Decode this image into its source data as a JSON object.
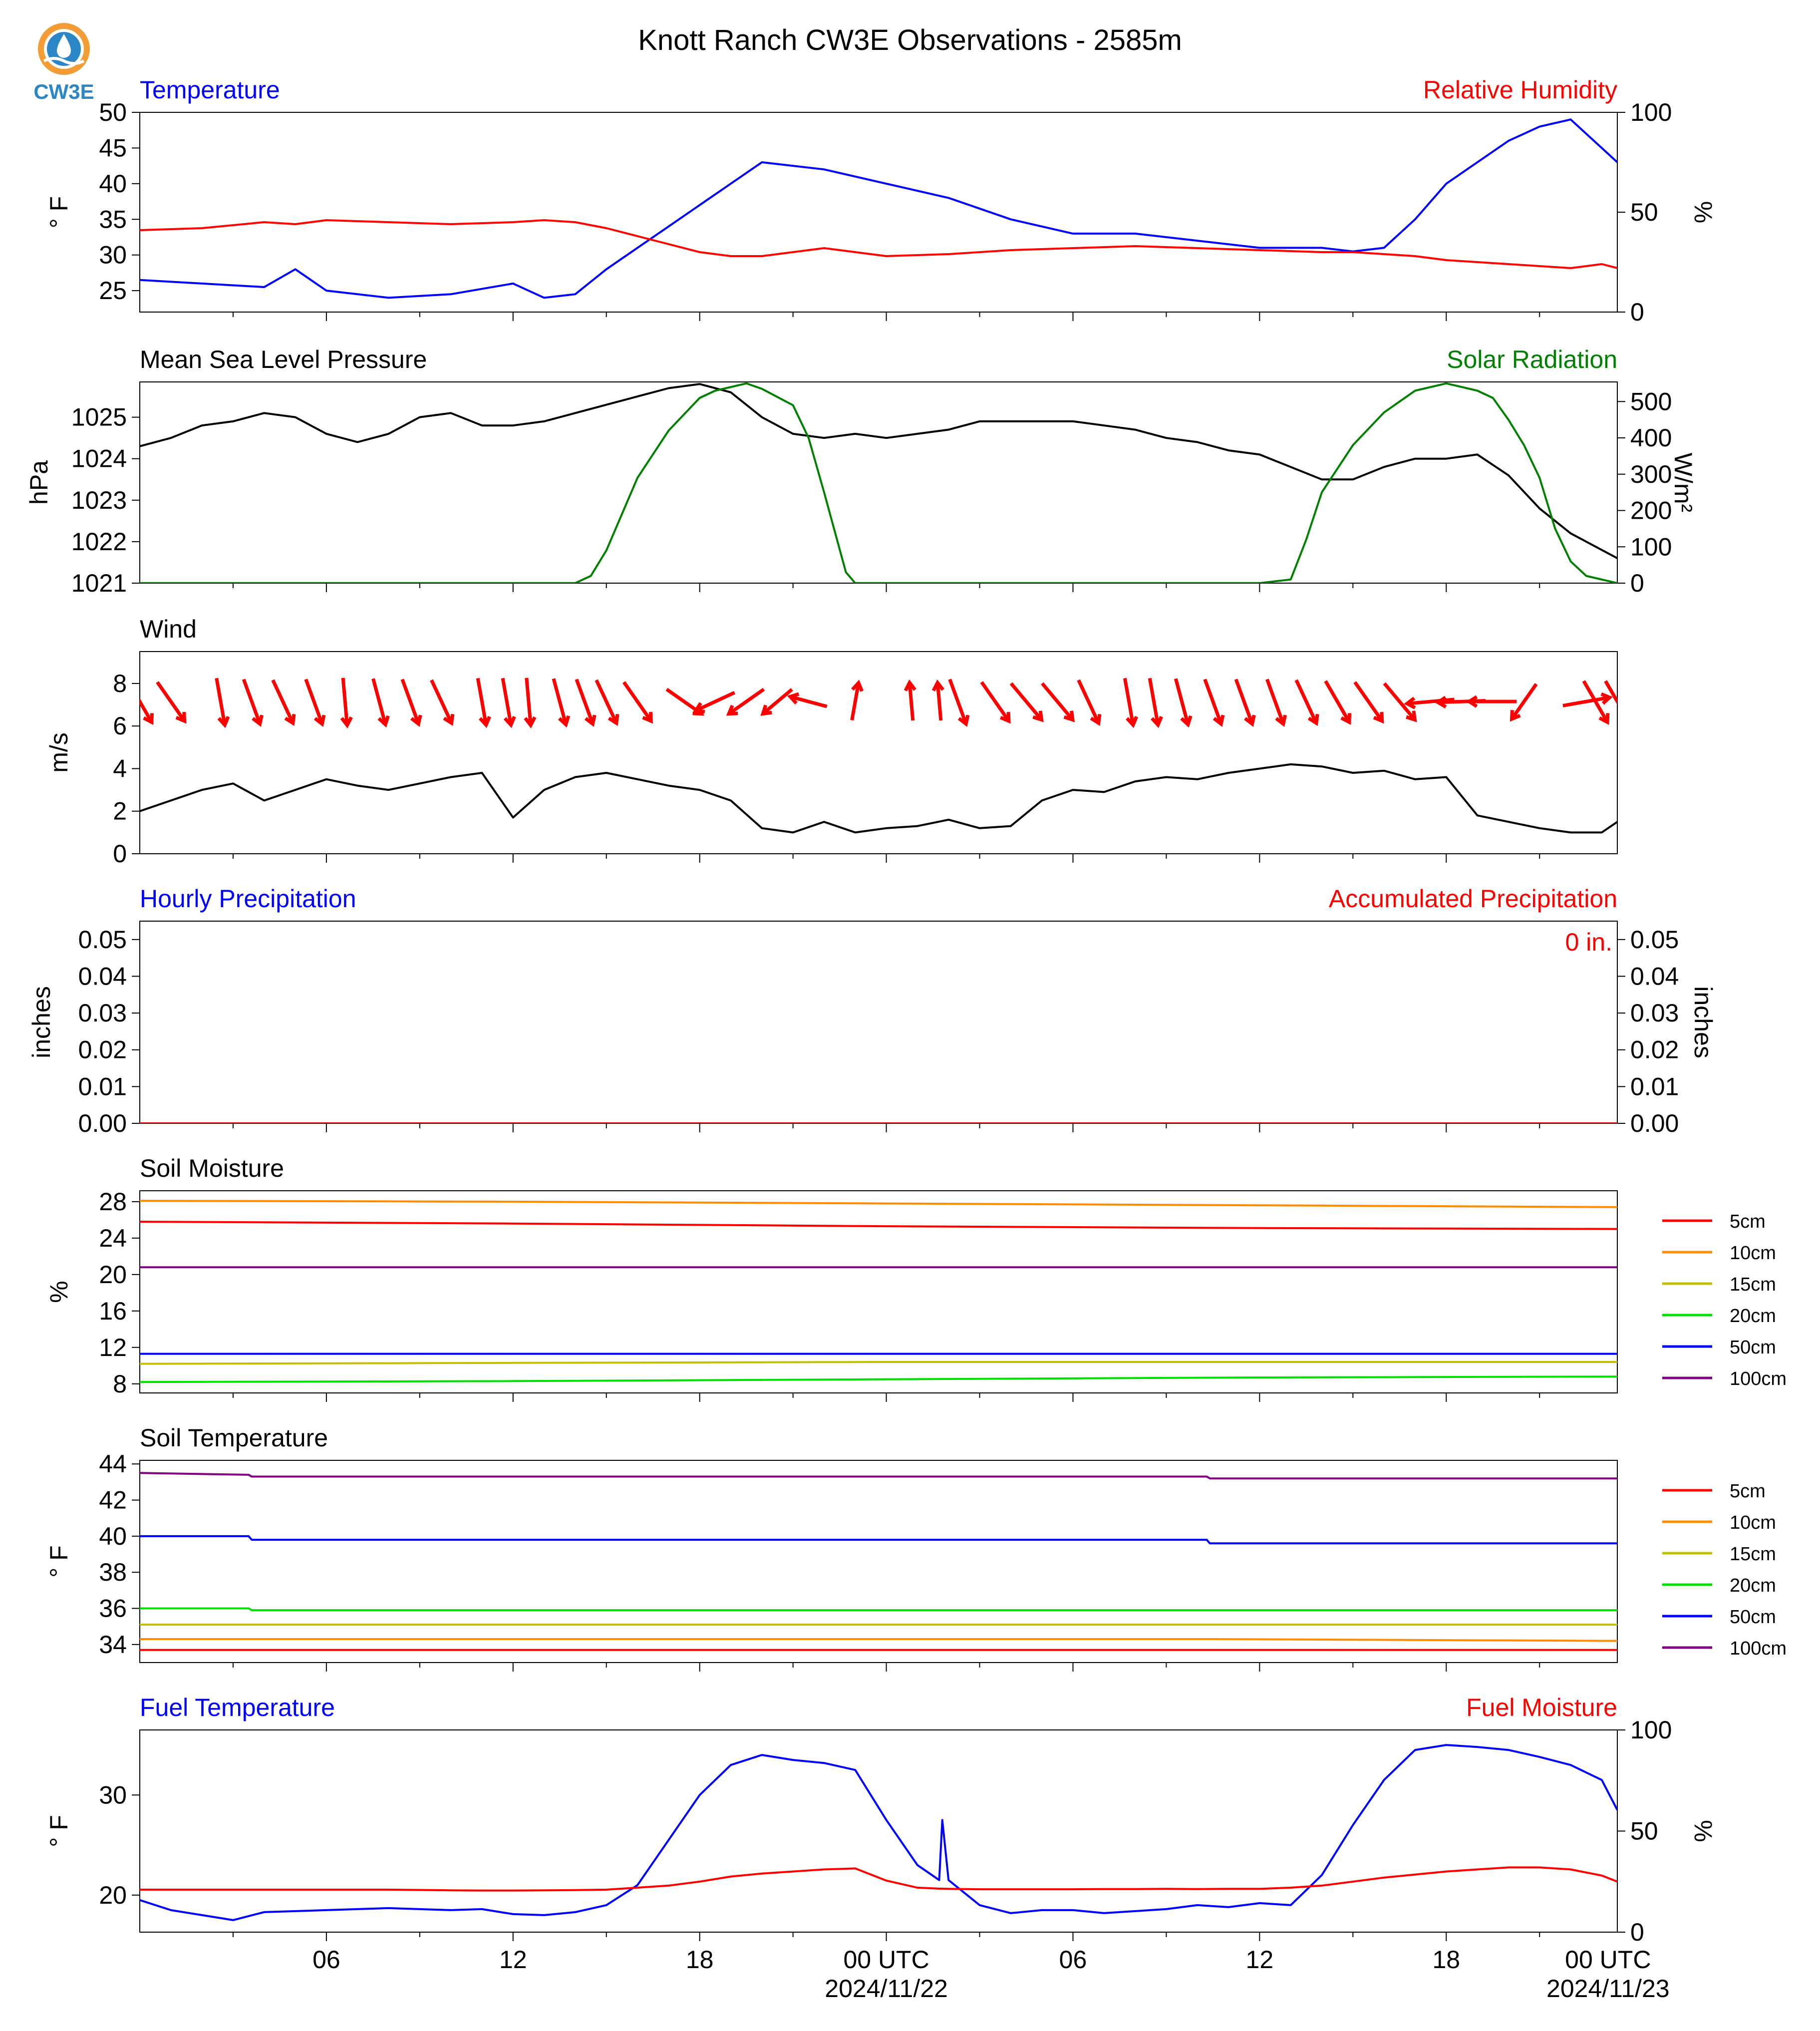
{
  "page": {
    "title": "Knott Ranch CW3E Observations - 2585m",
    "logo_text": "CW3E",
    "x_ticks": [
      "06",
      "12",
      "18",
      "00 UTC",
      "06",
      "12",
      "18",
      "00 UTC"
    ],
    "x_dates": [
      "2024/11/22",
      "2024/11/23"
    ]
  },
  "colors": {
    "red": "#ff0000",
    "blue": "#0000ff",
    "green": "#008000",
    "black": "#000000",
    "orange": "#ff8c00",
    "olive": "#c0c000",
    "lime": "#00e000",
    "purple": "#800080",
    "logo_orange": "#f39c35",
    "logo_blue": "#2a86c5"
  },
  "chart_data": [
    {
      "type": "line",
      "title": "Temperature",
      "title_right": "Relative Humidity",
      "ylabel": "° F",
      "ylabel_right": "%",
      "ylim": [
        22,
        50
      ],
      "ylim_right": [
        0,
        100
      ],
      "yticks": [
        25,
        30,
        35,
        40,
        45,
        50
      ],
      "yticks_right": [
        0,
        50,
        100
      ],
      "x": [
        0,
        2,
        4,
        5,
        6,
        8,
        10,
        12,
        13,
        14,
        15,
        16,
        17,
        18,
        19,
        20,
        22,
        24,
        26,
        28,
        30,
        32,
        34,
        36,
        38,
        39,
        40,
        41,
        42,
        43,
        44,
        45,
        46,
        47,
        47.5
      ],
      "series": [
        {
          "name": "Temperature",
          "axis": "left",
          "color": "blue",
          "values": [
            26.5,
            26,
            25.5,
            28,
            25,
            24,
            24.5,
            26,
            24,
            24.5,
            28,
            31,
            34,
            37,
            40,
            43,
            42,
            40,
            38,
            35,
            33,
            33,
            32,
            31,
            31,
            30.5,
            31,
            35,
            40,
            43,
            46,
            48,
            49,
            45,
            43
          ]
        },
        {
          "name": "Relative Humidity",
          "axis": "right",
          "color": "red",
          "values": [
            41,
            42,
            45,
            44,
            46,
            45,
            44,
            45,
            46,
            45,
            42,
            38,
            34,
            30,
            28,
            28,
            32,
            28,
            29,
            31,
            32,
            33,
            32,
            31,
            30,
            30,
            29,
            28,
            26,
            25,
            24,
            23,
            22,
            24,
            22
          ]
        }
      ]
    },
    {
      "type": "line",
      "title": "Mean Sea Level Pressure",
      "title_right": "Solar Radiation",
      "ylabel": "hPa",
      "ylabel_right": "W/m²",
      "ylim": [
        1021,
        1025.85
      ],
      "ylim_right": [
        0,
        554
      ],
      "yticks": [
        1021,
        1022,
        1023,
        1024,
        1025
      ],
      "yticks_right": [
        0,
        100,
        200,
        300,
        400,
        500
      ],
      "x_pressure": [
        0,
        1,
        2,
        3,
        4,
        5,
        6,
        7,
        8,
        9,
        10,
        11,
        12,
        13,
        14,
        15,
        16,
        17,
        18,
        19,
        20,
        21,
        22,
        23,
        24,
        25,
        26,
        27,
        28,
        29,
        30,
        31,
        32,
        33,
        34,
        35,
        36,
        37,
        38,
        39,
        40,
        41,
        42,
        43,
        44,
        45,
        46,
        47,
        47.5
      ],
      "x_solar": [
        0,
        13,
        14,
        14.5,
        15,
        16,
        17,
        18,
        18.5,
        19.5,
        20,
        21,
        21.5,
        22,
        22.7,
        23,
        36,
        37,
        37.5,
        38,
        39,
        40,
        41,
        42,
        43,
        43.5,
        44,
        44.5,
        45,
        45.5,
        46,
        46.5,
        47.5
      ],
      "series": [
        {
          "name": "Mean Sea Level Pressure",
          "axis": "left",
          "color": "black",
          "values": [
            1024.3,
            1024.5,
            1024.8,
            1024.9,
            1025.1,
            1025.0,
            1024.6,
            1024.4,
            1024.6,
            1025.0,
            1025.1,
            1024.8,
            1024.8,
            1024.9,
            1025.1,
            1025.3,
            1025.5,
            1025.7,
            1025.8,
            1025.6,
            1025.0,
            1024.6,
            1024.5,
            1024.6,
            1024.5,
            1024.6,
            1024.7,
            1024.9,
            1024.9,
            1024.9,
            1024.9,
            1024.8,
            1024.7,
            1024.5,
            1024.4,
            1024.2,
            1024.1,
            1023.8,
            1023.5,
            1023.5,
            1023.8,
            1024.0,
            1024.0,
            1024.1,
            1023.6,
            1022.8,
            1022.2,
            1021.8,
            1021.6
          ]
        },
        {
          "name": "Solar Radiation",
          "axis": "right",
          "color": "green",
          "values": [
            0,
            0,
            0,
            20,
            90,
            290,
            420,
            510,
            530,
            550,
            535,
            490,
            400,
            250,
            30,
            0,
            0,
            10,
            120,
            250,
            380,
            470,
            530,
            550,
            530,
            510,
            450,
            380,
            290,
            150,
            60,
            20,
            0
          ]
        }
      ]
    },
    {
      "type": "line",
      "title": "Wind",
      "ylabel": "m/s",
      "ylim": [
        0,
        9.5
      ],
      "yticks": [
        0,
        2,
        4,
        6,
        8
      ],
      "x": [
        0,
        1,
        2,
        3,
        4,
        5,
        6,
        7,
        8,
        9,
        10,
        11,
        12,
        13,
        14,
        15,
        16,
        17,
        18,
        19,
        20,
        21,
        22,
        23,
        24,
        25,
        26,
        27,
        28,
        29,
        30,
        31,
        32,
        33,
        34,
        35,
        36,
        37,
        38,
        39,
        40,
        41,
        42,
        43,
        44,
        45,
        46,
        47,
        47.5
      ],
      "series": [
        {
          "name": "Wind",
          "axis": "left",
          "color": "black",
          "values": [
            2.0,
            2.5,
            3.0,
            3.3,
            2.5,
            3.0,
            3.5,
            3.2,
            3.0,
            3.3,
            3.6,
            3.8,
            1.7,
            3.0,
            3.6,
            3.8,
            3.5,
            3.2,
            3.0,
            2.5,
            1.2,
            1.0,
            1.5,
            1.0,
            1.2,
            1.3,
            1.6,
            1.2,
            1.3,
            2.5,
            3.0,
            2.9,
            3.4,
            3.6,
            3.5,
            3.8,
            4.0,
            4.2,
            4.1,
            3.8,
            3.9,
            3.5,
            3.6,
            1.8,
            1.5,
            1.2,
            1.0,
            1.0,
            1.5
          ]
        }
      ],
      "wind_x": [
        0,
        1,
        2.6,
        3.6,
        4.6,
        5.6,
        6.6,
        7.7,
        8.7,
        9.7,
        11.0,
        11.8,
        12.5,
        13.5,
        14.3,
        15.0,
        16.0,
        17.5,
        18.5,
        19.5,
        20.5,
        21.5,
        23.0,
        24.8,
        25.7,
        26.3,
        27.5,
        28.5,
        29.5,
        30.5,
        31.8,
        32.6,
        33.5,
        34.5,
        35.5,
        36.5,
        37.5,
        38.5,
        39.5,
        40.5,
        41.5,
        42.5,
        43.5,
        44.5,
        46.5,
        46.8,
        47.5
      ],
      "wind_ang": [
        150,
        145,
        170,
        160,
        155,
        160,
        175,
        165,
        160,
        155,
        170,
        170,
        175,
        165,
        160,
        155,
        145,
        125,
        245,
        235,
        230,
        285,
        10,
        355,
        355,
        160,
        145,
        140,
        140,
        155,
        170,
        170,
        165,
        160,
        160,
        160,
        155,
        150,
        145,
        140,
        265,
        268,
        270,
        215,
        80,
        150,
        150
      ],
      "wind_len": [
        1,
        1,
        1,
        1,
        1,
        1,
        1,
        1,
        1,
        1,
        1,
        1,
        1,
        1,
        1,
        1,
        1,
        0.9,
        0.9,
        0.9,
        0.8,
        0.8,
        0.8,
        0.8,
        0.8,
        1,
        1,
        1,
        1,
        1,
        1,
        1,
        1,
        1,
        1,
        1,
        1,
        1,
        1,
        1,
        1,
        1,
        1,
        0.9,
        1,
        1,
        1
      ]
    },
    {
      "type": "line",
      "title": "Hourly Precipitation",
      "title_right": "Accumulated Precipitation",
      "ylabel": "inches",
      "ylabel_right": "inches",
      "ylim": [
        0,
        0.055
      ],
      "ylim_right": [
        0,
        0.055
      ],
      "yticks": [
        "0.00",
        "0.01",
        "0.02",
        "0.03",
        "0.04",
        "0.05"
      ],
      "yticks_right": [
        "0.00",
        "0.01",
        "0.02",
        "0.03",
        "0.04",
        "0.05"
      ],
      "annotation": "0 in.",
      "x": [
        0,
        47.5
      ],
      "series": [
        {
          "name": "Hourly Precipitation",
          "axis": "left",
          "color": "blue",
          "values": [
            0,
            0
          ]
        },
        {
          "name": "Accumulated Precipitation",
          "axis": "right",
          "color": "red",
          "values": [
            0,
            0
          ]
        }
      ]
    },
    {
      "type": "line",
      "title": "Soil Moisture",
      "ylabel": "%",
      "ylim": [
        7,
        29.2
      ],
      "yticks": [
        8,
        12,
        16,
        20,
        24,
        28
      ],
      "legend": "right",
      "x": [
        0,
        12,
        24,
        36,
        47.5
      ],
      "series": [
        {
          "name": "5cm",
          "color": "red",
          "values": [
            25.8,
            25.6,
            25.3,
            25.1,
            25.0
          ]
        },
        {
          "name": "10cm",
          "color": "orange",
          "values": [
            28.1,
            28.0,
            27.8,
            27.6,
            27.4
          ]
        },
        {
          "name": "15cm",
          "color": "olive",
          "values": [
            10.2,
            10.3,
            10.4,
            10.4,
            10.4
          ]
        },
        {
          "name": "20cm",
          "color": "lime",
          "values": [
            8.2,
            8.3,
            8.5,
            8.7,
            8.8
          ]
        },
        {
          "name": "50cm",
          "color": "blue",
          "values": [
            11.3,
            11.3,
            11.3,
            11.3,
            11.3
          ]
        },
        {
          "name": "100cm",
          "color": "purple",
          "values": [
            20.8,
            20.8,
            20.8,
            20.8,
            20.8
          ]
        }
      ]
    },
    {
      "type": "line",
      "title": "Soil Temperature",
      "ylabel": "° F",
      "ylim": [
        33,
        44.2
      ],
      "yticks": [
        34,
        36,
        38,
        40,
        42,
        44
      ],
      "legend": "right",
      "x": [
        0,
        3.5,
        3.6,
        34.3,
        34.4,
        47.5
      ],
      "series": [
        {
          "name": "5cm",
          "color": "red",
          "values": [
            33.7,
            33.7,
            33.7,
            33.7,
            33.7,
            33.7
          ]
        },
        {
          "name": "10cm",
          "color": "orange",
          "values": [
            34.3,
            34.3,
            34.3,
            34.3,
            34.3,
            34.2
          ]
        },
        {
          "name": "15cm",
          "color": "olive",
          "values": [
            35.1,
            35.1,
            35.1,
            35.1,
            35.1,
            35.1
          ]
        },
        {
          "name": "20cm",
          "color": "lime",
          "values": [
            36.0,
            36.0,
            35.9,
            35.9,
            35.9,
            35.9
          ]
        },
        {
          "name": "50cm",
          "color": "blue",
          "values": [
            40.0,
            40.0,
            39.8,
            39.8,
            39.6,
            39.6
          ]
        },
        {
          "name": "100cm",
          "color": "purple",
          "values": [
            43.5,
            43.4,
            43.3,
            43.3,
            43.2,
            43.2
          ]
        }
      ]
    },
    {
      "type": "line",
      "title": "Fuel Temperature",
      "title_right": "Fuel Moisture",
      "ylabel": "° F",
      "ylabel_right": "%",
      "ylim": [
        16.3,
        36.5
      ],
      "ylim_right": [
        0,
        100
      ],
      "yticks": [
        20,
        30
      ],
      "yticks_right": [
        0,
        50,
        100
      ],
      "x": [
        0,
        1,
        2,
        3,
        4,
        6,
        8,
        10,
        11,
        12,
        13,
        14,
        15,
        16,
        17,
        18,
        19,
        20,
        21,
        22,
        23,
        24,
        25,
        25.7,
        25.8,
        26.0,
        27,
        28,
        29,
        30,
        31,
        32,
        33,
        34,
        35,
        36,
        37,
        38,
        39,
        40,
        41,
        42,
        43,
        44,
        45,
        46,
        47,
        47.5
      ],
      "series": [
        {
          "name": "Fuel Temperature",
          "axis": "left",
          "color": "blue",
          "values": [
            19.5,
            18.5,
            18,
            17.5,
            18.3,
            18.5,
            18.7,
            18.5,
            18.6,
            18.1,
            18.0,
            18.3,
            19.0,
            21.0,
            25.5,
            30.0,
            33.0,
            34.0,
            33.5,
            33.2,
            32.5,
            27.5,
            23.0,
            21.5,
            27.5,
            21.5,
            19.0,
            18.2,
            18.5,
            18.5,
            18.2,
            18.4,
            18.6,
            19.0,
            18.8,
            19.2,
            19.0,
            22.0,
            27.0,
            31.5,
            34.5,
            35.0,
            34.8,
            34.5,
            33.8,
            33.0,
            31.5,
            28.5
          ]
        },
        {
          "name": "Fuel Moisture",
          "axis": "right",
          "color": "red",
          "values": [
            21,
            21,
            21,
            21,
            21,
            21,
            21,
            20.7,
            20.6,
            20.6,
            20.7,
            20.8,
            21.0,
            22,
            23,
            25,
            27.5,
            29,
            30,
            31,
            31.5,
            25.5,
            22,
            21.5,
            21.5,
            21.4,
            21.2,
            21.2,
            21.2,
            21.2,
            21.3,
            21.3,
            21.4,
            21.3,
            21.4,
            21.4,
            22,
            23,
            25,
            27,
            28.5,
            30,
            31,
            32,
            32,
            31,
            28,
            25
          ]
        }
      ]
    }
  ]
}
